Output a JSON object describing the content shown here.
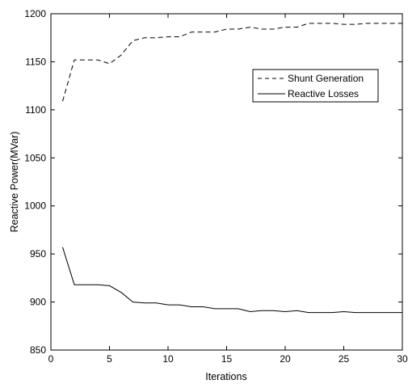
{
  "chart_data": {
    "type": "line",
    "xlabel": "Iterations",
    "ylabel": "Reactive Power(MVar)",
    "xlim": [
      0,
      30
    ],
    "ylim": [
      850,
      1200
    ],
    "xticks": [
      0,
      5,
      10,
      15,
      20,
      25,
      30
    ],
    "yticks": [
      850,
      900,
      950,
      1000,
      1050,
      1100,
      1150,
      1200
    ],
    "grid": false,
    "legend_position": "top-right",
    "series": [
      {
        "name": "Shunt Generation",
        "style": "dashed",
        "color": "#000000",
        "x": [
          1,
          2,
          3,
          4,
          5,
          6,
          7,
          8,
          9,
          10,
          11,
          12,
          13,
          14,
          15,
          16,
          17,
          18,
          19,
          20,
          21,
          22,
          23,
          24,
          25,
          26,
          27,
          28,
          29,
          30
        ],
        "y": [
          1109,
          1152,
          1152,
          1152,
          1148,
          1157,
          1172,
          1175,
          1175,
          1176,
          1176,
          1181,
          1181,
          1181,
          1184,
          1184,
          1186,
          1184,
          1184,
          1186,
          1186,
          1190,
          1190,
          1190,
          1189,
          1189,
          1190,
          1190,
          1190,
          1190
        ]
      },
      {
        "name": "Reactive Losses",
        "style": "solid",
        "color": "#000000",
        "x": [
          1,
          2,
          3,
          4,
          5,
          6,
          7,
          8,
          9,
          10,
          11,
          12,
          13,
          14,
          15,
          16,
          17,
          18,
          19,
          20,
          21,
          22,
          23,
          24,
          25,
          26,
          27,
          28,
          29,
          30
        ],
        "y": [
          957,
          918,
          918,
          918,
          917,
          910,
          900,
          899,
          899,
          897,
          897,
          895,
          895,
          893,
          893,
          893,
          890,
          891,
          891,
          890,
          891,
          889,
          889,
          889,
          890,
          889,
          889,
          889,
          889,
          889
        ]
      }
    ]
  }
}
